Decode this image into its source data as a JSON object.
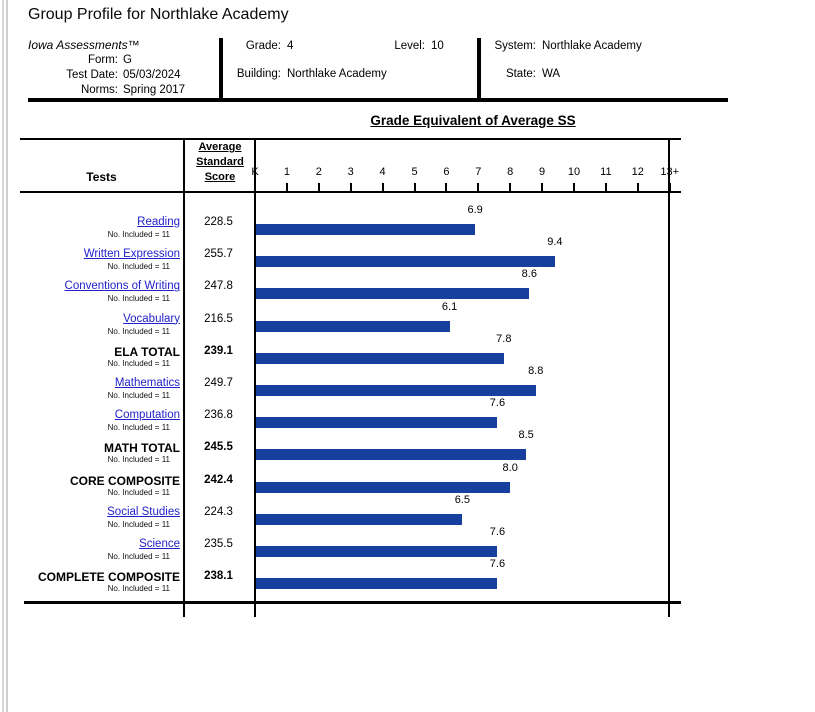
{
  "page_title": "Group Profile for Northlake Academy",
  "header": {
    "product": "Iowa Assessments™",
    "left_fields": [
      {
        "label": "Form:",
        "value": "G"
      },
      {
        "label": "Test Date:",
        "value": "05/03/2024"
      },
      {
        "label": "Norms:",
        "value": "Spring 2017"
      }
    ],
    "grade": {
      "label": "Grade:",
      "value": "4"
    },
    "level": {
      "label": "Level:",
      "value": "10"
    },
    "building": {
      "label": "Building:",
      "value": "Northlake Academy"
    },
    "system": {
      "label": "System:",
      "value": "Northlake Academy"
    },
    "state": {
      "label": "State:",
      "value": "WA"
    }
  },
  "table": {
    "tests_header": "Tests",
    "avg_ss_header": "Average Standard Score"
  },
  "chart_data": {
    "type": "bar",
    "orientation": "horizontal",
    "title": "Grade Equivalent of Average SS",
    "xlabel": "Grade Equivalent",
    "x_axis_ticks": [
      "K",
      "1",
      "2",
      "3",
      "4",
      "5",
      "6",
      "7",
      "8",
      "9",
      "10",
      "11",
      "12",
      "13+"
    ],
    "xlim": [
      0,
      13
    ],
    "grid": false,
    "bar_color": "#17409E",
    "link_color": "#2222CC",
    "rows": [
      {
        "test": "Reading",
        "style": "link",
        "no_included": "No. Included = 11",
        "avg_ss": "228.5",
        "ge": 6.9
      },
      {
        "test": "Written Expression",
        "style": "link",
        "no_included": "No. Included = 11",
        "avg_ss": "255.7",
        "ge": 9.4
      },
      {
        "test": "Conventions of Writing",
        "style": "link",
        "no_included": "No. Included = 11",
        "avg_ss": "247.8",
        "ge": 8.6
      },
      {
        "test": "Vocabulary",
        "style": "link",
        "no_included": "No. Included = 11",
        "avg_ss": "216.5",
        "ge": 6.1
      },
      {
        "test": "ELA TOTAL",
        "style": "total",
        "no_included": "No. Included = 11",
        "avg_ss": "239.1",
        "ge": 7.8
      },
      {
        "test": "Mathematics",
        "style": "link",
        "no_included": "No. Included = 11",
        "avg_ss": "249.7",
        "ge": 8.8
      },
      {
        "test": "Computation",
        "style": "link",
        "no_included": "No. Included = 11",
        "avg_ss": "236.8",
        "ge": 7.6
      },
      {
        "test": "MATH TOTAL",
        "style": "total",
        "no_included": "No. Included = 11",
        "avg_ss": "245.5",
        "ge": 8.5
      },
      {
        "test": "CORE COMPOSITE",
        "style": "total",
        "no_included": "No. Included = 11",
        "avg_ss": "242.4",
        "ge": 8.0
      },
      {
        "test": "Social Studies",
        "style": "link",
        "no_included": "No. Included = 11",
        "avg_ss": "224.3",
        "ge": 6.5
      },
      {
        "test": "Science",
        "style": "link",
        "no_included": "No. Included = 11",
        "avg_ss": "235.5",
        "ge": 7.6
      },
      {
        "test": "COMPLETE COMPOSITE",
        "style": "total",
        "no_included": "No. Included = 11",
        "avg_ss": "238.1",
        "ge": 7.6
      }
    ]
  }
}
